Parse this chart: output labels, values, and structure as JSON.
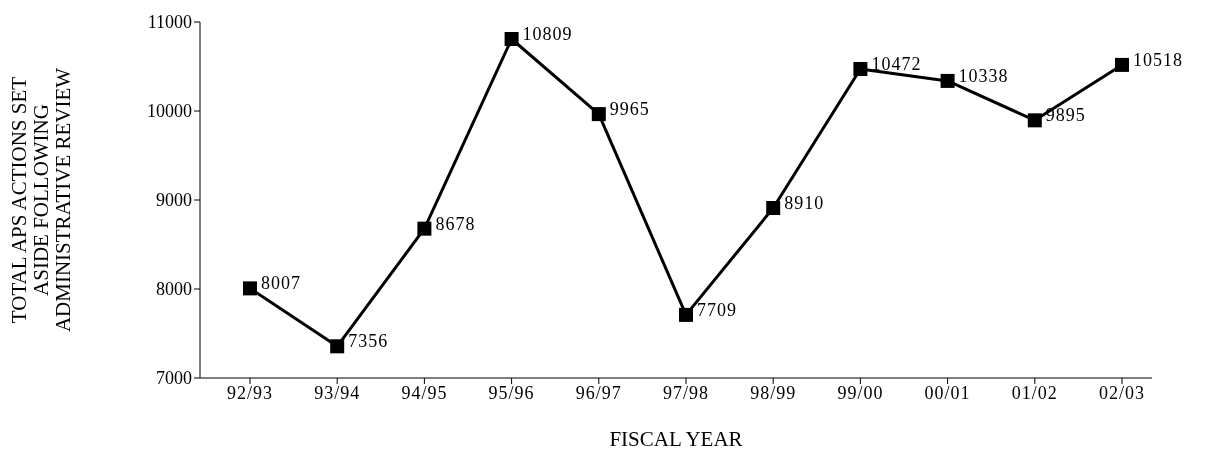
{
  "chart_data": {
    "type": "line",
    "xlabel": "FISCAL YEAR",
    "ylabel": "TOTAL APS ACTIONS SET\nASIDE FOLLOWING\nADMINISTRATIVE REVIEW",
    "categories": [
      "92/93",
      "93/94",
      "94/95",
      "95/96",
      "96/97",
      "97/98",
      "98/99",
      "99/00",
      "00/01",
      "01/02",
      "02/03"
    ],
    "series": [
      {
        "color": "#000000",
        "values": [
          8007,
          7356,
          8678,
          10809,
          9965,
          7709,
          8910,
          10472,
          10338,
          9895,
          10518
        ]
      }
    ],
    "ylim": [
      7000,
      11000
    ],
    "yticks": [
      7000,
      8000,
      9000,
      10000,
      11000
    ],
    "grid": false,
    "legend": false,
    "marker": "square",
    "line_style": "solid",
    "data_labels": true
  }
}
